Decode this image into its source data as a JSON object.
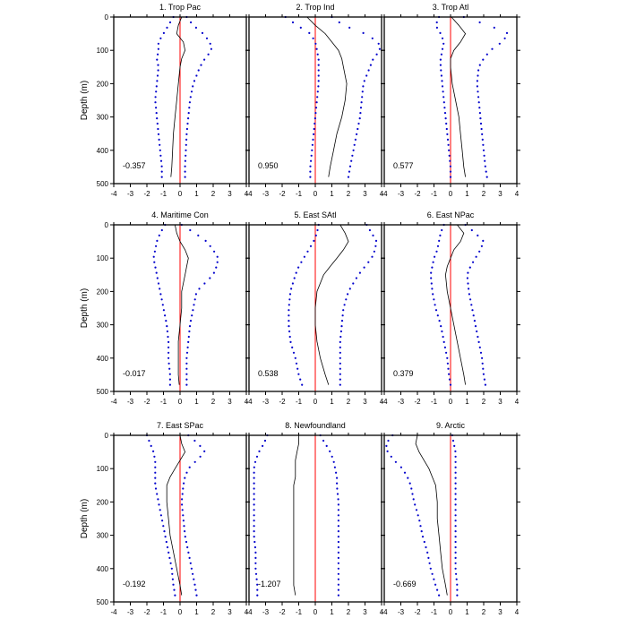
{
  "chart_data": {
    "type": "line",
    "ylabel": "Depth (m)",
    "xlim": [
      -4,
      4
    ],
    "ylim": [
      0,
      500
    ],
    "y_reversed": true,
    "xticks": [
      -4,
      -3,
      -2,
      -1,
      0,
      1,
      2,
      3,
      4
    ],
    "yticks": [
      0,
      100,
      200,
      300,
      400,
      500
    ],
    "grid": false,
    "colors": {
      "mean": "#000000",
      "bounds": "#0000cc",
      "zero": "#ff0000"
    },
    "panels": [
      {
        "title": "1. Trop Pac",
        "value": "-0.357",
        "depth": [
          0,
          25,
          50,
          75,
          100,
          125,
          150,
          200,
          250,
          300,
          350,
          400,
          450,
          480
        ],
        "mean": [
          0.1,
          -0.1,
          -0.2,
          0.2,
          0.3,
          0.1,
          0,
          -0.1,
          -0.2,
          -0.3,
          -0.4,
          -0.45,
          -0.5,
          -0.55
        ],
        "upper": [
          0.4,
          0.8,
          1.4,
          1.8,
          1.9,
          1.5,
          1.2,
          0.8,
          0.6,
          0.5,
          0.4,
          0.35,
          0.3,
          0.3
        ],
        "lower": [
          -0.4,
          -0.7,
          -1.0,
          -1.3,
          -1.3,
          -1.4,
          -1.3,
          -1.4,
          -1.5,
          -1.4,
          -1.3,
          -1.2,
          -1.1,
          -1.1
        ]
      },
      {
        "title": "2. Trop Ind",
        "value": "0.950",
        "depth": [
          0,
          25,
          50,
          75,
          100,
          125,
          150,
          200,
          250,
          300,
          350,
          400,
          450,
          480
        ],
        "mean": [
          -0.5,
          0,
          0.6,
          1.0,
          1.4,
          1.6,
          1.7,
          1.9,
          1.8,
          1.6,
          1.3,
          1.1,
          0.9,
          0.8
        ],
        "upper": [
          1.0,
          1.7,
          3.0,
          3.8,
          3.9,
          3.5,
          3.3,
          2.9,
          2.8,
          2.7,
          2.5,
          2.3,
          2.1,
          2.0
        ],
        "lower": [
          -1.8,
          -1.1,
          -0.3,
          0,
          0.1,
          0.2,
          0.2,
          0.2,
          0.1,
          0,
          -0.1,
          -0.2,
          -0.3,
          -0.3
        ]
      },
      {
        "title": "3. Trop Atl",
        "value": "0.577",
        "depth": [
          0,
          25,
          50,
          75,
          100,
          125,
          150,
          200,
          250,
          300,
          350,
          400,
          450,
          480
        ],
        "mean": [
          0.05,
          0.5,
          0.9,
          0.6,
          0.2,
          0,
          0,
          0.1,
          0.3,
          0.5,
          0.6,
          0.7,
          0.8,
          0.9
        ],
        "upper": [
          0.8,
          2.3,
          3.5,
          3.1,
          2.4,
          2.0,
          1.7,
          1.6,
          1.7,
          1.8,
          1.9,
          2.0,
          2.1,
          2.2
        ],
        "lower": [
          -0.7,
          -0.9,
          -0.6,
          -0.4,
          -0.5,
          -0.6,
          -0.6,
          -0.5,
          -0.4,
          -0.3,
          -0.2,
          -0.1,
          0,
          0
        ]
      },
      {
        "title": "4. Maritime Con",
        "value": "-0.017",
        "depth": [
          0,
          25,
          50,
          75,
          100,
          125,
          150,
          200,
          250,
          300,
          350,
          400,
          450,
          480
        ],
        "mean": [
          -0.3,
          -0.2,
          0,
          0.3,
          0.5,
          0.4,
          0.3,
          0.1,
          0.1,
          0,
          -0.1,
          -0.1,
          -0.1,
          -0.05
        ],
        "upper": [
          0.1,
          0.9,
          1.6,
          2.0,
          2.3,
          2.2,
          2.0,
          1.0,
          0.8,
          0.6,
          0.5,
          0.4,
          0.4,
          0.4
        ],
        "lower": [
          -0.9,
          -1.2,
          -1.4,
          -1.5,
          -1.6,
          -1.5,
          -1.4,
          -1.2,
          -1.0,
          -0.8,
          -0.7,
          -0.7,
          -0.6,
          -0.6
        ]
      },
      {
        "title": "5. East SAtl",
        "value": "0.538",
        "depth": [
          0,
          25,
          50,
          75,
          100,
          125,
          150,
          200,
          250,
          300,
          350,
          400,
          450,
          480
        ],
        "mean": [
          1.5,
          1.8,
          2.0,
          1.7,
          1.3,
          0.9,
          0.5,
          0.1,
          0,
          0,
          0.1,
          0.3,
          0.6,
          0.8
        ],
        "upper": [
          3.1,
          3.4,
          3.7,
          3.6,
          3.4,
          3.0,
          2.6,
          2.0,
          1.7,
          1.6,
          1.5,
          1.5,
          1.5,
          1.5
        ],
        "lower": [
          0.2,
          0.1,
          -0.1,
          -0.4,
          -0.7,
          -1.0,
          -1.2,
          -1.5,
          -1.6,
          -1.6,
          -1.5,
          -1.2,
          -1.0,
          -0.8
        ]
      },
      {
        "title": "6. East NPac",
        "value": "0.379",
        "depth": [
          0,
          25,
          50,
          75,
          100,
          125,
          150,
          200,
          250,
          300,
          350,
          400,
          450,
          480
        ],
        "mean": [
          0.4,
          0.8,
          0.6,
          0.2,
          0,
          -0.2,
          -0.3,
          -0.2,
          0,
          0.2,
          0.4,
          0.6,
          0.8,
          0.9
        ],
        "upper": [
          0.9,
          1.5,
          2.0,
          1.8,
          1.5,
          1.2,
          1.0,
          1.1,
          1.3,
          1.5,
          1.7,
          1.9,
          2.0,
          2.1
        ],
        "lower": [
          -0.4,
          -0.6,
          -0.7,
          -0.8,
          -1.0,
          -1.1,
          -1.2,
          -1.1,
          -0.9,
          -0.6,
          -0.4,
          -0.2,
          -0.1,
          0
        ]
      },
      {
        "title": "7. East SPac",
        "value": "-0.192",
        "depth": [
          0,
          25,
          50,
          75,
          100,
          125,
          150,
          200,
          250,
          300,
          350,
          400,
          450,
          480
        ],
        "mean": [
          0,
          0.1,
          0.3,
          0,
          -0.3,
          -0.6,
          -0.8,
          -0.8,
          -0.7,
          -0.6,
          -0.4,
          -0.2,
          0,
          0.1
        ],
        "upper": [
          0.5,
          1.1,
          1.5,
          1.0,
          0.5,
          0.3,
          0.2,
          0.1,
          0.2,
          0.3,
          0.5,
          0.7,
          0.9,
          1.0
        ],
        "lower": [
          -2.0,
          -1.8,
          -1.6,
          -1.5,
          -1.5,
          -1.5,
          -1.5,
          -1.3,
          -1.1,
          -0.9,
          -0.7,
          -0.5,
          -0.4,
          -0.3
        ]
      },
      {
        "title": "8. Newfoundland",
        "value": "-1.207",
        "depth": [
          0,
          25,
          50,
          75,
          100,
          125,
          150,
          200,
          250,
          300,
          350,
          400,
          450,
          480
        ],
        "mean": [
          -1.0,
          -1.0,
          -1.1,
          -1.2,
          -1.2,
          -1.2,
          -1.3,
          -1.3,
          -1.3,
          -1.3,
          -1.3,
          -1.3,
          -1.3,
          -1.2
        ],
        "upper": [
          0.3,
          0.6,
          0.9,
          1.1,
          1.2,
          1.3,
          1.3,
          1.4,
          1.4,
          1.4,
          1.4,
          1.4,
          1.4,
          1.4
        ],
        "lower": [
          -2.9,
          -3.1,
          -3.4,
          -3.6,
          -3.7,
          -3.7,
          -3.7,
          -3.7,
          -3.7,
          -3.7,
          -3.6,
          -3.6,
          -3.5,
          -3.5
        ]
      },
      {
        "title": "9. Arctic",
        "value": "-0.669",
        "depth": [
          0,
          25,
          50,
          75,
          100,
          125,
          150,
          200,
          250,
          300,
          350,
          400,
          450,
          480
        ],
        "mean": [
          -2.0,
          -2.1,
          -1.9,
          -1.6,
          -1.3,
          -1.1,
          -0.9,
          -0.8,
          -0.8,
          -0.7,
          -0.6,
          -0.5,
          -0.3,
          -0.2
        ],
        "upper": [
          0.1,
          0.2,
          0.3,
          0.3,
          0.3,
          0.3,
          0.3,
          0.3,
          0.3,
          0.3,
          0.3,
          0.3,
          0.4,
          0.4
        ],
        "lower": [
          -3.5,
          -3.9,
          -3.8,
          -3.4,
          -2.9,
          -2.6,
          -2.4,
          -2.2,
          -1.9,
          -1.7,
          -1.4,
          -1.2,
          -0.9,
          -0.7
        ]
      }
    ]
  }
}
